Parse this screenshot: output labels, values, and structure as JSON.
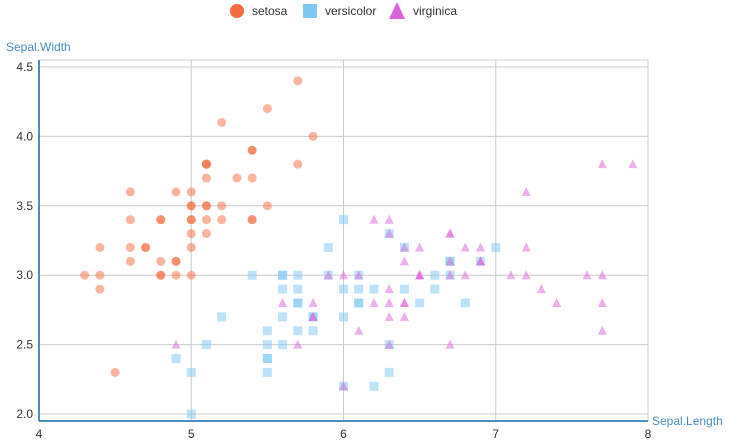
{
  "chart_data": {
    "type": "scatter",
    "title": "",
    "xlabel": "Sepal.Length",
    "ylabel": "Sepal.Width",
    "xlim": [
      4,
      8
    ],
    "ylim": [
      1.95,
      4.55
    ],
    "xticks": [
      4,
      5,
      6,
      7,
      8
    ],
    "xtick_labels": [
      "4",
      "5",
      "6",
      "7",
      "8"
    ],
    "yticks": [
      2.0,
      2.5,
      3.0,
      3.5,
      4.0,
      4.5
    ],
    "ytick_labels": [
      "2.0",
      "2.5",
      "3.0",
      "3.5",
      "4.0",
      "4.5"
    ],
    "grid": true,
    "legend_position": "top-center",
    "series": [
      {
        "name": "setosa",
        "marker": "circle",
        "color": "#f26c3f",
        "points": [
          [
            5.1,
            3.5
          ],
          [
            4.9,
            3.0
          ],
          [
            4.7,
            3.2
          ],
          [
            4.6,
            3.1
          ],
          [
            5.0,
            3.6
          ],
          [
            5.4,
            3.9
          ],
          [
            4.6,
            3.4
          ],
          [
            5.0,
            3.4
          ],
          [
            4.4,
            2.9
          ],
          [
            4.9,
            3.1
          ],
          [
            5.4,
            3.7
          ],
          [
            4.8,
            3.4
          ],
          [
            4.8,
            3.0
          ],
          [
            4.3,
            3.0
          ],
          [
            5.8,
            4.0
          ],
          [
            5.7,
            4.4
          ],
          [
            5.4,
            3.9
          ],
          [
            5.1,
            3.5
          ],
          [
            5.7,
            3.8
          ],
          [
            5.1,
            3.8
          ],
          [
            5.4,
            3.4
          ],
          [
            5.1,
            3.7
          ],
          [
            4.6,
            3.6
          ],
          [
            5.1,
            3.3
          ],
          [
            4.8,
            3.4
          ],
          [
            5.0,
            3.0
          ],
          [
            5.0,
            3.4
          ],
          [
            5.2,
            3.5
          ],
          [
            5.2,
            3.4
          ],
          [
            4.7,
            3.2
          ],
          [
            4.8,
            3.1
          ],
          [
            5.4,
            3.4
          ],
          [
            5.2,
            4.1
          ],
          [
            5.5,
            4.2
          ],
          [
            4.9,
            3.1
          ],
          [
            5.0,
            3.2
          ],
          [
            5.5,
            3.5
          ],
          [
            4.9,
            3.6
          ],
          [
            4.4,
            3.0
          ],
          [
            5.1,
            3.4
          ],
          [
            5.0,
            3.5
          ],
          [
            4.5,
            2.3
          ],
          [
            4.4,
            3.2
          ],
          [
            5.0,
            3.5
          ],
          [
            5.1,
            3.8
          ],
          [
            4.8,
            3.0
          ],
          [
            5.1,
            3.8
          ],
          [
            4.6,
            3.2
          ],
          [
            5.3,
            3.7
          ],
          [
            5.0,
            3.3
          ]
        ]
      },
      {
        "name": "versicolor",
        "marker": "square",
        "color": "#7ec8f2",
        "points": [
          [
            7.0,
            3.2
          ],
          [
            6.4,
            3.2
          ],
          [
            6.9,
            3.1
          ],
          [
            5.5,
            2.3
          ],
          [
            6.5,
            2.8
          ],
          [
            5.7,
            2.8
          ],
          [
            6.3,
            3.3
          ],
          [
            4.9,
            2.4
          ],
          [
            6.6,
            2.9
          ],
          [
            5.2,
            2.7
          ],
          [
            5.0,
            2.0
          ],
          [
            5.9,
            3.0
          ],
          [
            6.0,
            2.2
          ],
          [
            6.1,
            2.9
          ],
          [
            5.6,
            2.9
          ],
          [
            6.7,
            3.1
          ],
          [
            5.6,
            3.0
          ],
          [
            5.8,
            2.7
          ],
          [
            6.2,
            2.2
          ],
          [
            5.6,
            2.5
          ],
          [
            5.9,
            3.2
          ],
          [
            6.1,
            2.8
          ],
          [
            6.3,
            2.5
          ],
          [
            6.1,
            2.8
          ],
          [
            6.4,
            2.9
          ],
          [
            6.6,
            3.0
          ],
          [
            6.8,
            2.8
          ],
          [
            6.7,
            3.0
          ],
          [
            6.0,
            2.9
          ],
          [
            5.7,
            2.6
          ],
          [
            5.5,
            2.4
          ],
          [
            5.5,
            2.4
          ],
          [
            5.8,
            2.7
          ],
          [
            6.0,
            2.7
          ],
          [
            5.4,
            3.0
          ],
          [
            6.0,
            3.4
          ],
          [
            6.7,
            3.1
          ],
          [
            6.3,
            2.3
          ],
          [
            5.6,
            3.0
          ],
          [
            5.5,
            2.5
          ],
          [
            5.5,
            2.6
          ],
          [
            6.1,
            3.0
          ],
          [
            5.8,
            2.6
          ],
          [
            5.0,
            2.3
          ],
          [
            5.6,
            2.7
          ],
          [
            5.7,
            3.0
          ],
          [
            5.7,
            2.9
          ],
          [
            6.2,
            2.9
          ],
          [
            5.1,
            2.5
          ],
          [
            5.7,
            2.8
          ]
        ]
      },
      {
        "name": "virginica",
        "marker": "triangle",
        "color": "#d966d6",
        "points": [
          [
            6.3,
            3.3
          ],
          [
            5.8,
            2.7
          ],
          [
            7.1,
            3.0
          ],
          [
            6.3,
            2.9
          ],
          [
            6.5,
            3.0
          ],
          [
            7.6,
            3.0
          ],
          [
            4.9,
            2.5
          ],
          [
            7.3,
            2.9
          ],
          [
            6.7,
            2.5
          ],
          [
            7.2,
            3.6
          ],
          [
            6.5,
            3.2
          ],
          [
            6.4,
            2.7
          ],
          [
            6.8,
            3.0
          ],
          [
            5.7,
            2.5
          ],
          [
            5.8,
            2.8
          ],
          [
            6.4,
            3.2
          ],
          [
            6.5,
            3.0
          ],
          [
            7.7,
            3.8
          ],
          [
            7.7,
            2.6
          ],
          [
            6.0,
            2.2
          ],
          [
            6.9,
            3.2
          ],
          [
            5.6,
            2.8
          ],
          [
            7.7,
            2.8
          ],
          [
            6.3,
            2.7
          ],
          [
            6.7,
            3.3
          ],
          [
            7.2,
            3.2
          ],
          [
            6.2,
            2.8
          ],
          [
            6.1,
            3.0
          ],
          [
            6.4,
            2.8
          ],
          [
            7.2,
            3.0
          ],
          [
            7.4,
            2.8
          ],
          [
            7.9,
            3.8
          ],
          [
            6.4,
            2.8
          ],
          [
            6.3,
            2.8
          ],
          [
            6.1,
            2.6
          ],
          [
            7.7,
            3.0
          ],
          [
            6.3,
            3.4
          ],
          [
            6.4,
            3.1
          ],
          [
            6.0,
            3.0
          ],
          [
            6.9,
            3.1
          ],
          [
            6.7,
            3.1
          ],
          [
            6.9,
            3.1
          ],
          [
            5.8,
            2.7
          ],
          [
            6.8,
            3.2
          ],
          [
            6.7,
            3.3
          ],
          [
            6.7,
            3.0
          ],
          [
            6.3,
            2.5
          ],
          [
            6.5,
            3.0
          ],
          [
            6.2,
            3.4
          ],
          [
            5.9,
            3.0
          ]
        ]
      }
    ]
  }
}
